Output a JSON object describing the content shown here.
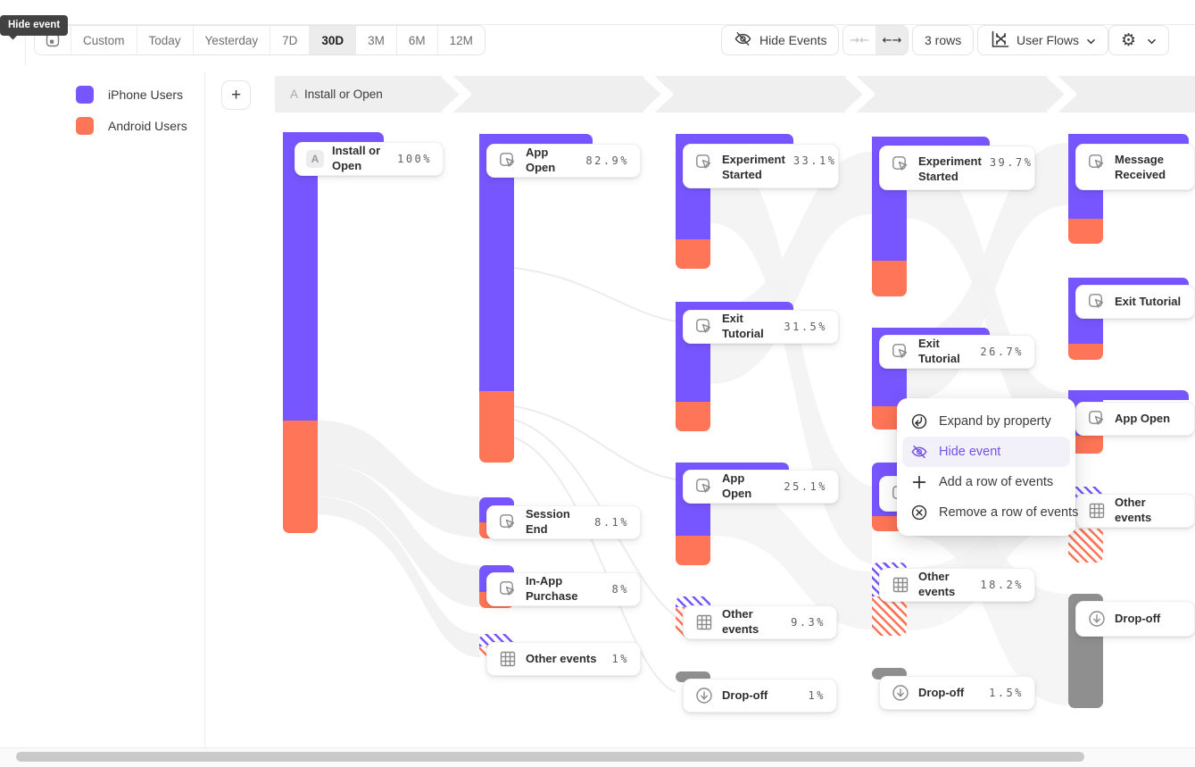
{
  "app": {
    "tooltip": "Hide event"
  },
  "toolbar": {
    "date_ranges": [
      "Custom",
      "Today",
      "Yesterday",
      "7D",
      "30D",
      "3M",
      "6M",
      "12M"
    ],
    "selected_range": "30D",
    "hide_events": "Hide Events",
    "collapse_arrows": "→←",
    "expand_arrows": "←→",
    "rows": "3 rows",
    "view": "User Flows",
    "gear": "⚙"
  },
  "legend": [
    {
      "label": "iPhone Users",
      "color": "#7856FF"
    },
    {
      "label": "Android Users",
      "color": "#FF7557"
    }
  ],
  "breadcrumb": {
    "badge": "A",
    "label": "Install or Open"
  },
  "context_menu": [
    {
      "label": "Expand by property",
      "icon": "expand-by-property-icon",
      "active": false
    },
    {
      "label": "Hide event",
      "icon": "eye-off-icon",
      "active": true
    },
    {
      "label": "Add a row of events",
      "icon": "plus-icon",
      "active": false
    },
    {
      "label": "Remove a row of events",
      "icon": "circle-x-icon",
      "active": false
    }
  ],
  "colors": {
    "iphone": "#7856FF",
    "android": "#FF7557",
    "dropoff": "#8F8F8F",
    "menu_active_text": "#7452E6"
  },
  "chart_data": {
    "type": "sankey-flow",
    "title": "User Flows",
    "breakdown_legend": [
      "iPhone Users",
      "Android Users"
    ],
    "anchor_step": {
      "badge": "A",
      "event": "Install or Open"
    },
    "columns": [
      {
        "step": 1,
        "nodes": [
          {
            "name": "Install or Open",
            "pct": "100%",
            "type": "event",
            "badge": "A"
          }
        ]
      },
      {
        "step": 2,
        "nodes": [
          {
            "name": "App Open",
            "pct": "82.9%",
            "type": "event"
          },
          {
            "name": "Session End",
            "pct": "8.1%",
            "type": "event"
          },
          {
            "name": "In-App Purchase",
            "pct": "8%",
            "type": "event"
          },
          {
            "name": "Other events",
            "pct": "1%",
            "type": "other"
          }
        ]
      },
      {
        "step": 3,
        "nodes": [
          {
            "name": "Experiment Started",
            "pct": "33.1%",
            "type": "event",
            "lines": 2
          },
          {
            "name": "Exit Tutorial",
            "pct": "31.5%",
            "type": "event"
          },
          {
            "name": "App Open",
            "pct": "25.1%",
            "type": "event"
          },
          {
            "name": "Other events",
            "pct": "9.3%",
            "type": "other"
          },
          {
            "name": "Drop-off",
            "pct": "1%",
            "type": "dropoff"
          }
        ]
      },
      {
        "step": 4,
        "nodes": [
          {
            "name": "Experiment Started",
            "pct": "39.7%",
            "type": "event",
            "lines": 2
          },
          {
            "name": "Exit Tutorial",
            "pct": "26.7%",
            "type": "event"
          },
          {
            "name": "",
            "pct": "",
            "type": "event"
          },
          {
            "name": "Other events",
            "pct": "18.2%",
            "type": "other"
          },
          {
            "name": "Drop-off",
            "pct": "1.5%",
            "type": "dropoff"
          }
        ]
      },
      {
        "step": 5,
        "nodes": [
          {
            "name": "Message Received",
            "pct": "",
            "type": "event",
            "lines": 2
          },
          {
            "name": "Exit Tutorial",
            "pct": "",
            "type": "event"
          },
          {
            "name": "App Open",
            "pct": "",
            "type": "event"
          },
          {
            "name": "Other events",
            "pct": "",
            "type": "other"
          },
          {
            "name": "Drop-off",
            "pct": "",
            "type": "dropoff"
          }
        ]
      }
    ]
  }
}
